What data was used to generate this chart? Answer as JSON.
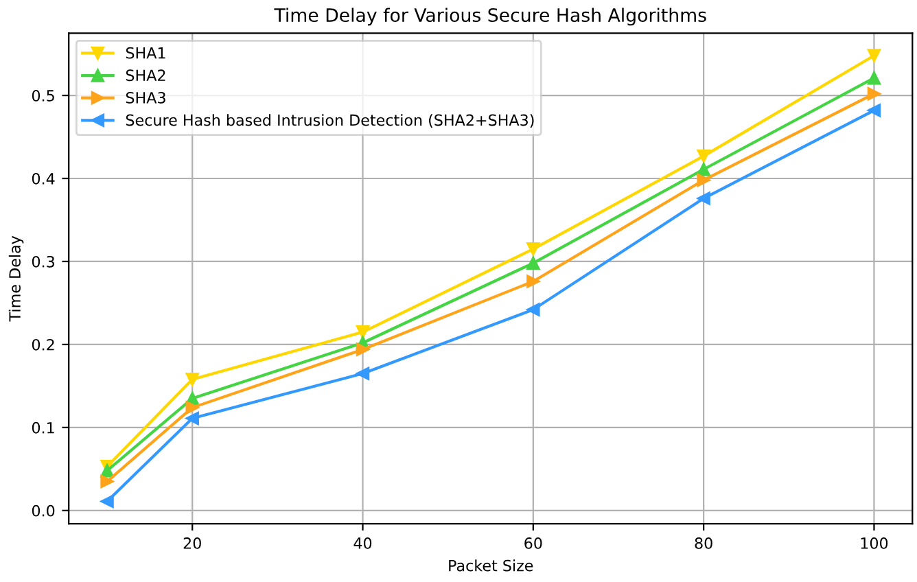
{
  "chart_data": {
    "type": "line",
    "title": "Time Delay for Various Secure Hash Algorithms",
    "xlabel": "Packet Size",
    "ylabel": "Time Delay",
    "x": [
      10,
      20,
      40,
      60,
      80,
      100
    ],
    "series": [
      {
        "name": "SHA1",
        "color": "#ffd700",
        "marker": "triangle_down",
        "values": [
          0.053,
          0.158,
          0.215,
          0.315,
          0.427,
          0.548
        ]
      },
      {
        "name": "SHA2",
        "color": "#44d444",
        "marker": "triangle_up",
        "values": [
          0.048,
          0.135,
          0.202,
          0.298,
          0.411,
          0.521
        ]
      },
      {
        "name": "SHA3",
        "color": "#ffa31a",
        "marker": "triangle_right",
        "values": [
          0.035,
          0.124,
          0.194,
          0.276,
          0.398,
          0.502
        ]
      },
      {
        "name": "Secure Hash based Intrusion Detection (SHA2+SHA3)",
        "color": "#3399ff",
        "marker": "triangle_left",
        "values": [
          0.011,
          0.111,
          0.165,
          0.242,
          0.376,
          0.482
        ]
      }
    ],
    "xlim": [
      5.5,
      104.5
    ],
    "xticks": [
      20,
      40,
      60,
      80,
      100
    ],
    "ylim": [
      -0.016,
      0.575
    ],
    "yticks": [
      {
        "value": 0,
        "label": "0.0"
      },
      0.1,
      0.2,
      0.3,
      0.4,
      0.5
    ],
    "grid": true,
    "legend": "top left",
    "line_style": "solid"
  }
}
